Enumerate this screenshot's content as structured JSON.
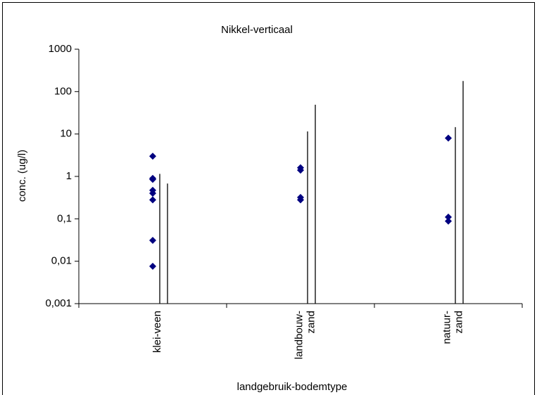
{
  "chart_data": {
    "type": "scatter",
    "title": "Nikkel-verticaal",
    "y_label": "conc. (ug/l)",
    "x_label": "landgebruik-bodemtype",
    "categories": [
      [
        "klei-veen"
      ],
      [
        "landbouw-",
        "zand"
      ],
      [
        "natuur-",
        "zand"
      ]
    ],
    "log_y": true,
    "ylim": [
      0.001,
      1000
    ],
    "yticks": [
      {
        "value": 0.001,
        "label": "0,001"
      },
      {
        "value": 0.01,
        "label": "0,01"
      },
      {
        "value": 0.1,
        "label": "0,1"
      },
      1,
      10,
      100,
      1000
    ],
    "series": [
      {
        "marker": "diamond",
        "color": "#000080",
        "values": [
          [
            3,
            0.9,
            0.85,
            0.47,
            0.4,
            0.28,
            0.031,
            0.0076
          ],
          [
            1.6,
            1.4,
            0.32,
            0.28
          ],
          [
            8,
            0.11,
            0.088
          ]
        ]
      },
      {
        "marker": "vline",
        "color": "#000000",
        "values": [
          1.15,
          11.5,
          14.5
        ]
      },
      {
        "marker": "vline",
        "color": "#000000",
        "values": [
          0.68,
          49,
          178
        ]
      }
    ]
  }
}
